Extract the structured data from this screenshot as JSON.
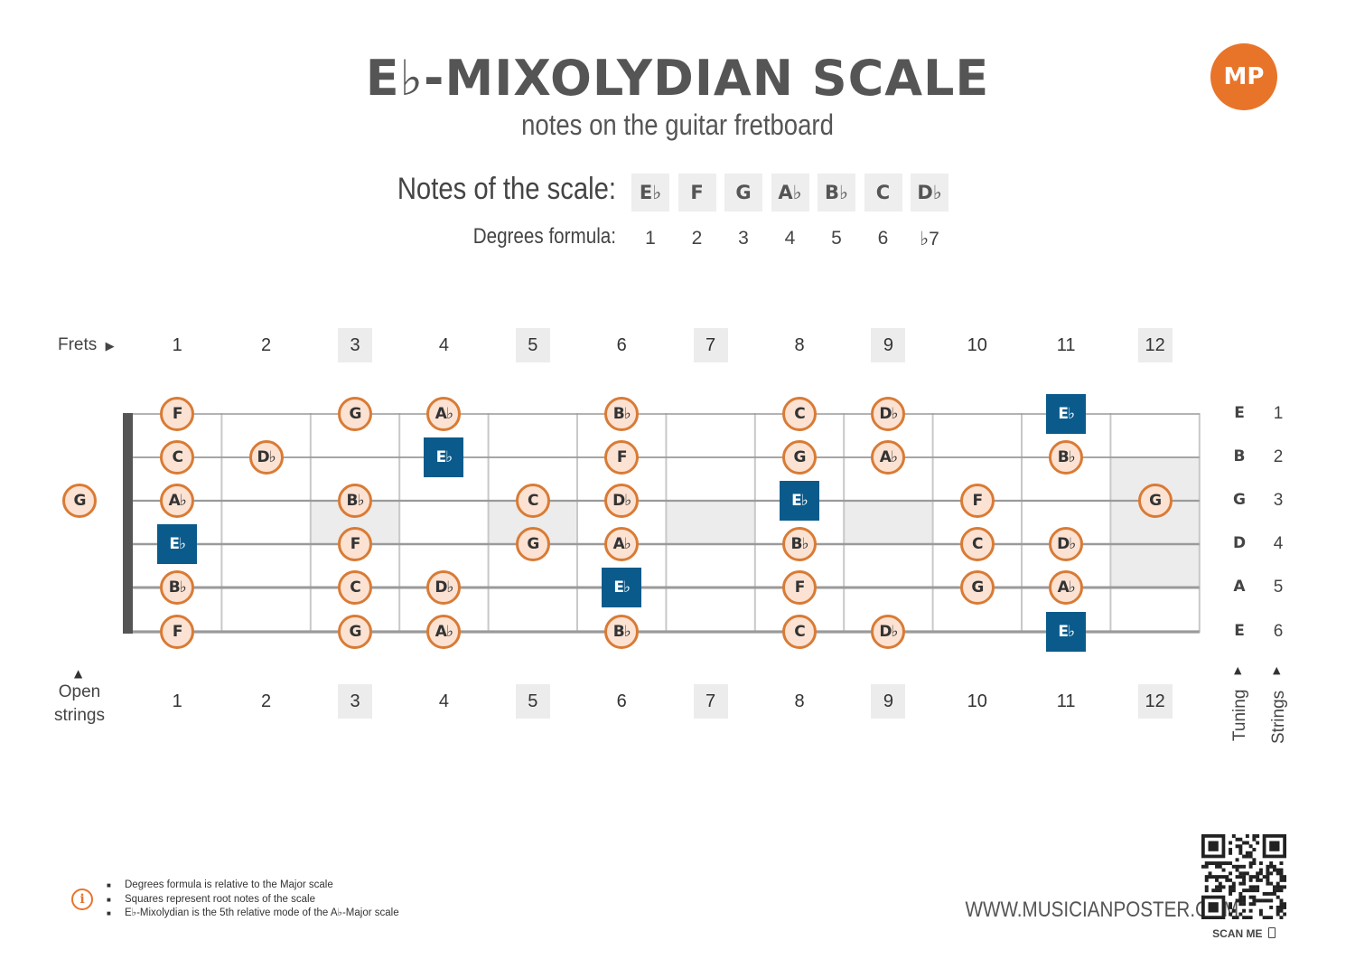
{
  "header": {
    "title": "E♭-MIXOLYDIAN SCALE",
    "subtitle": "notes on the guitar fretboard",
    "logo_text": "MP"
  },
  "scale": {
    "notes_label": "Notes of the scale:",
    "degrees_label": "Degrees formula:",
    "notes": [
      "E♭",
      "F",
      "G",
      "A♭",
      "B♭",
      "C",
      "D♭"
    ],
    "degrees": [
      "1",
      "2",
      "3",
      "4",
      "5",
      "6",
      "♭7"
    ]
  },
  "fretboard": {
    "frets_label": "Frets",
    "open_strings_label_1": "Open",
    "open_strings_label_2": "strings",
    "tuning_label": "Tuning",
    "strings_label": "Strings",
    "fret_numbers": [
      "1",
      "2",
      "3",
      "4",
      "5",
      "6",
      "7",
      "8",
      "9",
      "10",
      "11",
      "12"
    ],
    "marked_frets": [
      3,
      5,
      7,
      9,
      12
    ],
    "strings": [
      {
        "tuning": "E",
        "number": "1",
        "open": "",
        "frets": [
          "F",
          "",
          "G",
          "A♭",
          "",
          "B♭",
          "",
          "C",
          "D♭",
          "",
          "E♭",
          ""
        ]
      },
      {
        "tuning": "B",
        "number": "2",
        "open": "",
        "frets": [
          "C",
          "D♭",
          "",
          "E♭",
          "",
          "F",
          "",
          "G",
          "A♭",
          "",
          "B♭",
          ""
        ]
      },
      {
        "tuning": "G",
        "number": "3",
        "open": "G",
        "frets": [
          "A♭",
          "",
          "B♭",
          "",
          "C",
          "D♭",
          "",
          "E♭",
          "",
          "F",
          "",
          "G"
        ]
      },
      {
        "tuning": "D",
        "number": "4",
        "open": "",
        "frets": [
          "E♭",
          "",
          "F",
          "",
          "G",
          "A♭",
          "",
          "B♭",
          "",
          "C",
          "D♭",
          ""
        ]
      },
      {
        "tuning": "A",
        "number": "5",
        "open": "",
        "frets": [
          "B♭",
          "",
          "C",
          "D♭",
          "",
          "E♭",
          "",
          "F",
          "",
          "G",
          "A♭",
          ""
        ]
      },
      {
        "tuning": "E",
        "number": "6",
        "open": "",
        "frets": [
          "F",
          "",
          "G",
          "A♭",
          "",
          "B♭",
          "",
          "C",
          "D♭",
          "",
          "E♭",
          ""
        ]
      }
    ],
    "root_note": "E♭"
  },
  "footer": {
    "notes": [
      "Degrees formula is relative to the Major scale",
      "Squares represent root notes of the scale",
      "E♭-Mixolydian is the 5th relative mode of the A♭-Major scale"
    ],
    "website": "WWW.MUSICIANPOSTER.COM",
    "scan_me": "SCAN ME"
  },
  "colors": {
    "accent": "#e8742a",
    "note_fill": "#fbe2d3",
    "note_border": "#d97b35",
    "root_fill": "#0a5b8c",
    "marker_shade": "#ececec"
  }
}
